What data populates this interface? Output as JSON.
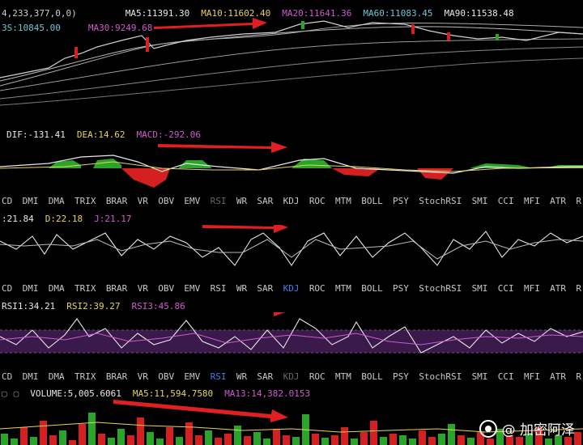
{
  "colors": {
    "red_arrow": "#e02020",
    "white": "#e8e8e8",
    "yellow": "#e8d35a",
    "cyan": "#6fc4d8",
    "magenta": "#d05ad0",
    "green": "#2aa52a",
    "red": "#d42020",
    "purple_band": "#3a1a4a",
    "active_tab": "#3f7fe8"
  },
  "price_panel": {
    "header_left": "4,233,377,0,0)",
    "ma5": "MA5:11391.30",
    "ma10": "MA10:11602.40",
    "ma20": "MA20:11641.36",
    "ma60": "MA60:11083.45",
    "ma90": "MA90:11538.48",
    "row2_left": "3S:10845.00",
    "row2_ma": "MA30:9249.68"
  },
  "macd_panel": {
    "dif": "DIF:-131.41",
    "dea": "DEA:14.62",
    "macd": "MACD:-292.06"
  },
  "indicator_tabs": [
    "CD",
    "DMI",
    "DMA",
    "TRIX",
    "BRAR",
    "VR",
    "OBV",
    "EMV",
    "RSI",
    "WR",
    "SAR",
    "KDJ",
    "ROC",
    "MTM",
    "BOLL",
    "PSY",
    "StochRSI",
    "SMI",
    "CCI",
    "MFI",
    "ATR",
    "R"
  ],
  "tab_rows": [
    {
      "active": "",
      "dim": "RSI"
    },
    {
      "active": "KDJ",
      "dim": ""
    },
    {
      "active": "RSI",
      "dim": "KDJ"
    }
  ],
  "kdj_panel": {
    "k": ":21.84",
    "d": "D:22.18",
    "j": "J:21.17"
  },
  "rsi_panel": {
    "rsi1": "RSI1:34.21",
    "rsi2": "RSI2:39.27",
    "rsi3": "RSI3:45.86"
  },
  "volume_panel": {
    "volume": "VOLUME:5,005.6061",
    "ma5": "MA5:11,594.7580",
    "ma13": "MA13:14,382.0153"
  },
  "watermark": {
    "text": "@ 加密阿泽",
    "icon": "circle-logo-icon"
  }
}
